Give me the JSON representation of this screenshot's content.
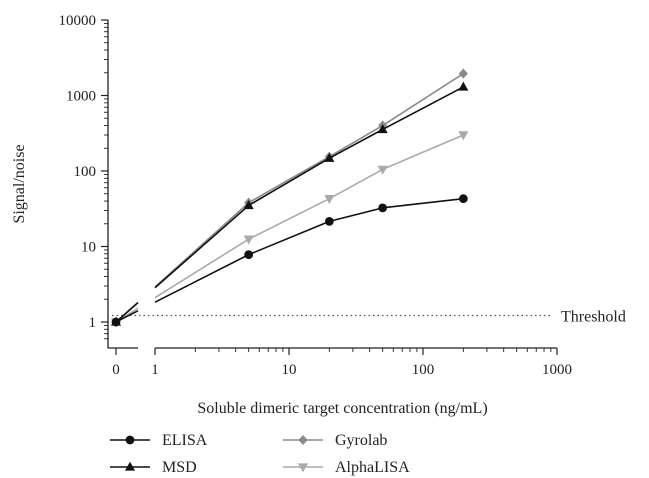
{
  "chart_data": {
    "type": "line",
    "title": "",
    "xlabel": "Soluble dimeric target concentration (ng/mL)",
    "ylabel": "Signal/noise",
    "x_scale": "log (broken axis with separate 0 position)",
    "y_scale": "log",
    "ylim": [
      0.5,
      10000
    ],
    "xlim": [
      1,
      1000
    ],
    "x_ticks": [
      "0",
      "1",
      "10",
      "100",
      "1000"
    ],
    "y_ticks": [
      "1",
      "10",
      "100",
      "1000",
      "10000"
    ],
    "x": [
      0,
      5,
      20,
      50,
      200
    ],
    "series": [
      {
        "name": "ELISA",
        "marker": "circle",
        "color": "#111111",
        "values": [
          1.0,
          7.8,
          21.5,
          32.5,
          43.0
        ]
      },
      {
        "name": "MSD",
        "marker": "triangle-up",
        "color": "#111111",
        "values": [
          1.0,
          35.0,
          148.0,
          355.0,
          1300.0
        ]
      },
      {
        "name": "Gyrolab",
        "marker": "diamond",
        "color": "#8a8a8a",
        "values": [
          1.0,
          38.0,
          155.0,
          400.0,
          1950.0
        ]
      },
      {
        "name": "AlphaLISA",
        "marker": "triangle-down",
        "color": "#aaaaaa",
        "values": [
          1.0,
          12.5,
          43.0,
          105.0,
          300.0
        ]
      }
    ],
    "threshold": {
      "label": "Threshold",
      "value": 1.22
    },
    "grid": false,
    "legend_position": "bottom-left, two columns"
  }
}
